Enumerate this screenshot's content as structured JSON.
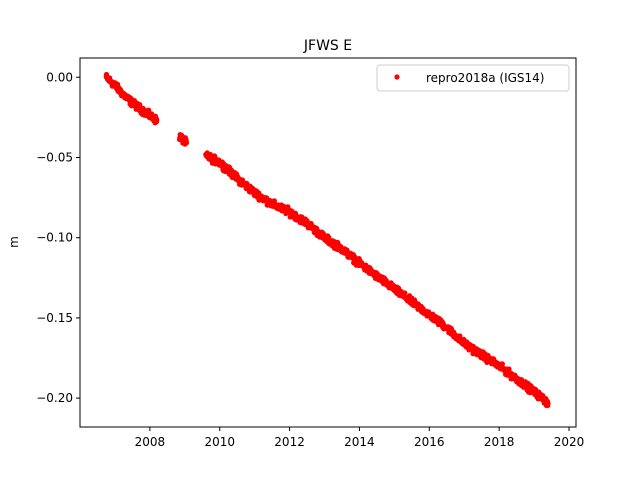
{
  "chart_data": {
    "type": "scatter",
    "title": "JFWS E",
    "xlabel": "",
    "ylabel": "m",
    "xlim": [
      2006.0,
      2020.2
    ],
    "ylim": [
      -0.218,
      0.012
    ],
    "grid": false,
    "legend_position": "top-right",
    "x_ticks": [
      {
        "value": 2008,
        "label": "2008"
      },
      {
        "value": 2010,
        "label": "2010"
      },
      {
        "value": 2012,
        "label": "2012"
      },
      {
        "value": 2014,
        "label": "2014"
      },
      {
        "value": 2016,
        "label": "2016"
      },
      {
        "value": 2018,
        "label": "2018"
      },
      {
        "value": 2020,
        "label": "2020"
      }
    ],
    "y_ticks": [
      {
        "value": 0.0,
        "label": "0.00"
      },
      {
        "value": -0.05,
        "label": "−0.05"
      },
      {
        "value": -0.1,
        "label": "−0.10"
      },
      {
        "value": -0.15,
        "label": "−0.15"
      },
      {
        "value": -0.2,
        "label": "−0.20"
      }
    ],
    "series": [
      {
        "name": "repro2018a (IGS14)",
        "color": "#ff0000",
        "marker": "circle",
        "segments": [
          {
            "x": [
              2006.75,
              2007.0,
              2007.25,
              2007.5,
              2007.75,
              2008.0,
              2008.2
            ],
            "y": [
              0.0,
              -0.005,
              -0.011,
              -0.016,
              -0.02,
              -0.024,
              -0.027
            ]
          },
          {
            "x": [
              2008.85,
              2008.95,
              2009.05
            ],
            "y": [
              -0.037,
              -0.039,
              -0.041
            ]
          },
          {
            "x": [
              2009.6,
              2010.0,
              2010.5,
              2011.0,
              2011.5,
              2012.0,
              2012.5,
              2013.0,
              2013.5,
              2014.0,
              2014.5,
              2015.0,
              2015.5,
              2016.0,
              2016.5,
              2017.0,
              2017.5,
              2018.0,
              2018.5,
              2019.0,
              2019.4
            ],
            "y": [
              -0.049,
              -0.053,
              -0.063,
              -0.072,
              -0.079,
              -0.084,
              -0.091,
              -0.1,
              -0.107,
              -0.116,
              -0.124,
              -0.132,
              -0.14,
              -0.148,
              -0.156,
              -0.166,
              -0.173,
              -0.18,
              -0.188,
              -0.196,
              -0.203
            ]
          }
        ]
      }
    ]
  }
}
